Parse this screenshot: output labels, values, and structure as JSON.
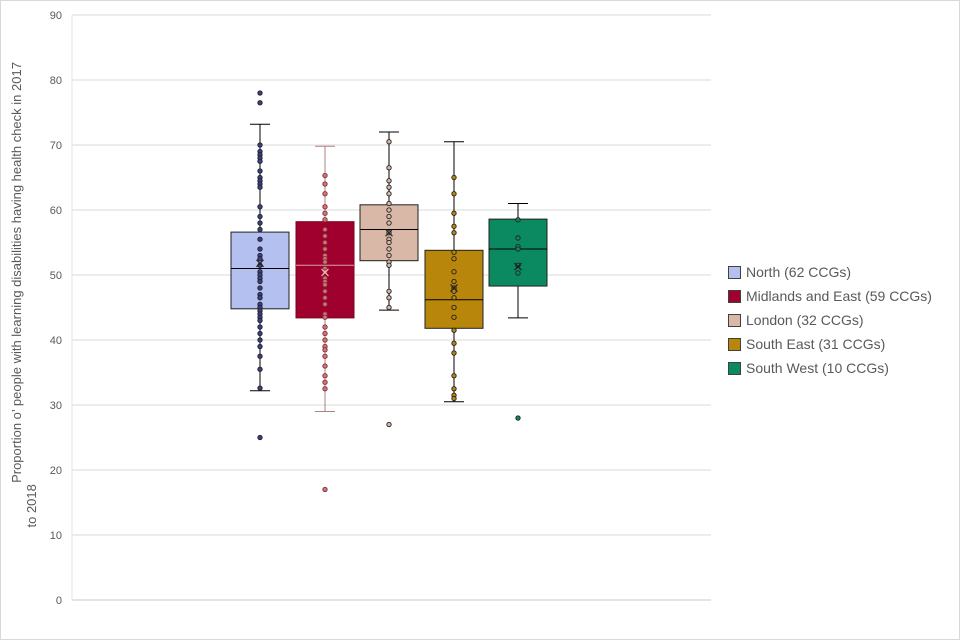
{
  "chart_data": {
    "type": "box",
    "title": "",
    "xlabel": "",
    "ylabel": "Proportion o’ people with learning disabilities having health check in 2017 to 2018",
    "ylim": [
      0,
      90
    ],
    "yticks": [
      0,
      10,
      20,
      30,
      40,
      50,
      60,
      70,
      80,
      90
    ],
    "grid": true,
    "legend_position": "right",
    "series": [
      {
        "name": "North (62 CCGs)",
        "color": "#b4c0f0",
        "point_color": "#3b3f8c",
        "whisker_color": "#000000",
        "median_color": "#000000",
        "min": 32.2,
        "q1": 44.8,
        "median": 51.0,
        "q3": 56.6,
        "max": 73.2,
        "mean": 51.8,
        "points": [
          78,
          76.5,
          70,
          69,
          68.5,
          68,
          67.5,
          66,
          65,
          64.5,
          64,
          63.5,
          60.5,
          59,
          58,
          57,
          55.5,
          54,
          53,
          52.5,
          51.5,
          50.5,
          50,
          49.5,
          49,
          48,
          47,
          46.5,
          45.5,
          45,
          44.5,
          44,
          43.5,
          43,
          42,
          41,
          40,
          39,
          37.5,
          35.5,
          32.6,
          25
        ]
      },
      {
        "name": "Midlands and East (59 CCGs)",
        "color": "#a0002e",
        "point_color": "#c87878",
        "whisker_color": "#b08080",
        "median_color": "#d8a0a0",
        "min": 29.0,
        "q1": 43.4,
        "median": 51.5,
        "q3": 58.2,
        "max": 69.8,
        "mean": 50.4,
        "points": [
          65.3,
          64,
          62.5,
          60.5,
          59.5,
          58.5,
          57,
          56,
          55,
          54,
          53,
          52.5,
          52,
          51,
          50.5,
          49.5,
          49,
          48.5,
          47.5,
          46.5,
          45.5,
          44,
          43.5,
          42,
          41,
          40,
          39,
          38.5,
          37.5,
          36,
          34.5,
          33.5,
          32.5,
          17
        ]
      },
      {
        "name": "London (32 CCGs)",
        "color": "#d9b8a8",
        "point_color": "#d9b8a8",
        "whisker_color": "#000000",
        "median_color": "#000000",
        "min": 44.6,
        "q1": 52.2,
        "median": 57.0,
        "q3": 60.8,
        "max": 72.0,
        "mean": 56.5,
        "points": [
          70.5,
          66.5,
          64.5,
          63.5,
          62.5,
          61,
          60,
          59,
          58,
          56.5,
          55.5,
          55,
          54,
          53,
          52,
          51.5,
          47.5,
          46.5,
          45,
          27
        ]
      },
      {
        "name": "South East (31 CCGs)",
        "color": "#b8860b",
        "point_color": "#b8860b",
        "whisker_color": "#000000",
        "median_color": "#000000",
        "min": 30.5,
        "q1": 41.8,
        "median": 46.2,
        "q3": 53.8,
        "max": 70.5,
        "mean": 48.0,
        "points": [
          65,
          62.5,
          59.5,
          57.5,
          56.5,
          53.5,
          52.5,
          50.5,
          49,
          48,
          47.5,
          46.5,
          45,
          43.5,
          41.5,
          39.5,
          38,
          34.5,
          32.5,
          31.5,
          31
        ]
      },
      {
        "name": "South West (10 CCGs)",
        "color": "#0b8a62",
        "point_color": "#0b8a62",
        "whisker_color": "#000000",
        "median_color": "#000000",
        "min": 43.4,
        "q1": 48.3,
        "median": 54.0,
        "q3": 58.6,
        "max": 61.0,
        "mean": 51.3,
        "points": [
          58.5,
          55.7,
          54.4,
          54,
          51.5,
          50.3,
          28
        ]
      }
    ]
  }
}
